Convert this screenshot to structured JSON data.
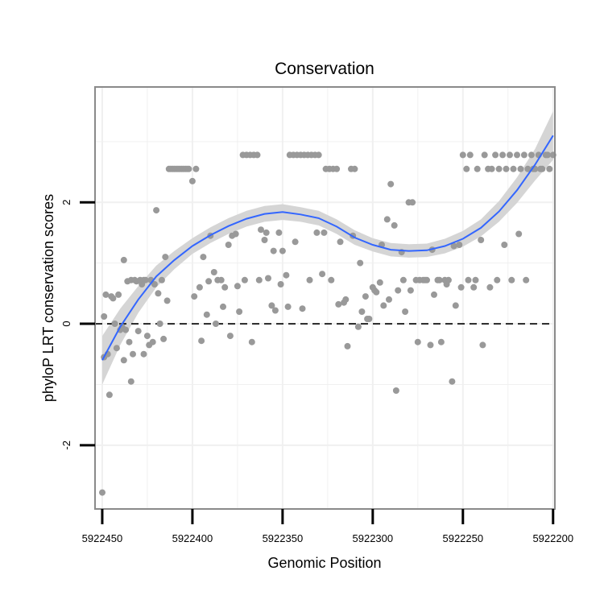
{
  "colors": {
    "point": "#999999",
    "smooth_line": "#3366ff",
    "ribbon": "#d5d5d5",
    "grid": "#f0f0f0",
    "panel_border": "#8a8a8a",
    "reference_line": "#000000"
  },
  "chart_data": {
    "type": "scatter",
    "title": "Conservation",
    "xlabel": "Genomic Position",
    "ylabel": "phyloP LRT conservation scores",
    "x_reversed": true,
    "xlim": [
      5922454,
      5922199
    ],
    "ylim": [
      -3.05,
      3.9
    ],
    "x_ticks": [
      5922450,
      5922400,
      5922350,
      5922300,
      5922250,
      5922200
    ],
    "x_tick_labels": [
      "5922450",
      "5922400",
      "5922350",
      "5922300",
      "5922250",
      "5922200"
    ],
    "y_ticks": [
      -2,
      0,
      2
    ],
    "y_tick_labels": [
      "-2",
      "0",
      "2"
    ],
    "hline": 0,
    "series": [
      {
        "name": "phyloP LRT score",
        "kind": "points",
        "x": [
          5922450,
          5922449,
          5922449,
          5922448,
          5922447,
          5922446,
          5922445,
          5922444,
          5922443,
          5922442,
          5922441,
          5922440,
          5922439,
          5922438,
          5922438,
          5922437,
          5922436,
          5922435,
          5922434,
          5922434,
          5922433,
          5922432,
          5922431,
          5922430,
          5922429,
          5922428,
          5922427,
          5922427,
          5922426,
          5922425,
          5922424,
          5922423,
          5922422,
          5922421,
          5922420,
          5922419,
          5922418,
          5922417,
          5922416,
          5922415,
          5922414,
          5922413,
          5922412,
          5922411,
          5922410,
          5922409,
          5922408,
          5922407,
          5922406,
          5922405,
          5922404,
          5922403,
          5922402,
          5922400,
          5922398,
          5922396,
          5922394,
          5922392,
          5922390,
          5922388,
          5922386,
          5922384,
          5922382,
          5922380,
          5922378,
          5922376,
          5922374,
          5922372,
          5922370,
          5922368,
          5922366,
          5922364,
          5922362,
          5922360,
          5922358,
          5922356,
          5922354,
          5922352,
          5922350,
          5922348,
          5922346,
          5922344,
          5922342,
          5922340,
          5922338,
          5922336,
          5922334,
          5922332,
          5922330,
          5922328,
          5922326,
          5922324,
          5922322,
          5922320,
          5922318,
          5922316,
          5922314,
          5922312,
          5922310,
          5922308,
          5922306,
          5922304,
          5922302,
          5922300,
          5922298,
          5922296,
          5922294,
          5922292,
          5922290,
          5922288,
          5922286,
          5922284,
          5922282,
          5922280,
          5922278,
          5922276,
          5922274,
          5922272,
          5922270,
          5922268,
          5922266,
          5922264,
          5922262,
          5922260,
          5922258,
          5922256,
          5922254,
          5922252,
          5922250,
          5922248,
          5922246,
          5922244,
          5922242,
          5922240,
          5922238,
          5922236,
          5922234,
          5922232,
          5922230,
          5922228,
          5922226,
          5922224,
          5922222,
          5922220,
          5922218,
          5922216,
          5922214,
          5922212,
          5922210,
          5922208,
          5922206,
          5922204,
          5922202,
          5922200,
          5922399,
          5922395,
          5922391,
          5922387,
          5922383,
          5922379,
          5922375,
          5922371,
          5922367,
          5922363,
          5922359,
          5922355,
          5922351,
          5922347,
          5922343,
          5922339,
          5922335,
          5922331,
          5922327,
          5922323,
          5922319,
          5922315,
          5922311,
          5922307,
          5922303,
          5922299,
          5922295,
          5922291,
          5922287,
          5922283,
          5922279,
          5922275,
          5922271,
          5922267,
          5922263,
          5922259,
          5922255,
          5922251,
          5922247,
          5922243,
          5922239,
          5922235,
          5922231,
          5922227,
          5922223,
          5922219,
          5922215,
          5922211,
          5922207,
          5922203
        ],
        "y": [
          -2.78,
          0.12,
          -0.55,
          0.48,
          -0.5,
          -1.17,
          0.45,
          0.42,
          0.0,
          -0.4,
          0.48,
          -0.1,
          -0.05,
          -0.6,
          1.05,
          -0.1,
          0.7,
          -0.3,
          0.72,
          -0.95,
          -0.5,
          0.72,
          0.7,
          -0.12,
          0.72,
          0.65,
          0.72,
          -0.5,
          0.72,
          -0.2,
          -0.35,
          0.72,
          -0.3,
          0.65,
          1.87,
          0.5,
          0.0,
          0.72,
          -0.25,
          1.1,
          0.38,
          2.55,
          2.55,
          2.55,
          2.55,
          2.55,
          2.55,
          2.55,
          2.55,
          2.55,
          2.55,
          2.55,
          2.55,
          2.35,
          2.55,
          0.6,
          1.1,
          0.15,
          1.45,
          0.85,
          0.72,
          0.72,
          0.6,
          1.3,
          1.45,
          1.48,
          0.2,
          2.78,
          2.78,
          2.78,
          2.78,
          2.78,
          1.55,
          1.38,
          0.75,
          0.3,
          0.22,
          1.5,
          1.2,
          0.8,
          2.78,
          2.78,
          2.78,
          2.78,
          2.78,
          2.78,
          2.78,
          2.78,
          2.78,
          0.82,
          2.55,
          2.55,
          2.55,
          2.55,
          1.35,
          0.35,
          -0.37,
          2.55,
          2.55,
          -0.05,
          0.2,
          0.45,
          0.08,
          0.6,
          0.52,
          0.68,
          0.3,
          1.72,
          2.3,
          1.62,
          0.55,
          1.18,
          0.2,
          2.0,
          2.0,
          0.72,
          0.72,
          0.72,
          0.72,
          -0.35,
          0.48,
          0.72,
          -0.3,
          0.72,
          0.72,
          -0.95,
          0.3,
          1.3,
          2.78,
          2.55,
          2.78,
          0.6,
          2.55,
          1.38,
          2.78,
          2.55,
          2.55,
          2.78,
          2.55,
          2.78,
          2.55,
          2.78,
          2.55,
          2.78,
          2.55,
          2.78,
          2.55,
          2.78,
          2.55,
          2.78,
          2.55,
          2.78,
          2.55,
          2.78,
          0.45,
          -0.28,
          0.7,
          0.0,
          0.28,
          -0.2,
          0.62,
          0.72,
          -0.3,
          0.72,
          1.5,
          1.2,
          0.65,
          0.28,
          1.35,
          0.25,
          0.72,
          1.5,
          1.5,
          0.72,
          0.32,
          0.4,
          1.45,
          1.0,
          0.08,
          0.55,
          1.3,
          0.4,
          -1.1,
          0.72,
          0.55,
          -0.3,
          0.72,
          1.22,
          0.72,
          0.65,
          1.28,
          0.6,
          0.72,
          0.72,
          -0.35,
          0.6,
          0.72,
          1.3,
          0.72,
          1.48,
          0.72,
          2.55,
          2.55,
          2.78
        ]
      },
      {
        "name": "loess smooth",
        "kind": "line",
        "x": [
          5922450,
          5922440,
          5922430,
          5922420,
          5922410,
          5922400,
          5922390,
          5922380,
          5922370,
          5922360,
          5922350,
          5922340,
          5922330,
          5922320,
          5922310,
          5922300,
          5922290,
          5922280,
          5922270,
          5922260,
          5922250,
          5922240,
          5922230,
          5922220,
          5922210,
          5922200
        ],
        "y": [
          -0.6,
          -0.05,
          0.4,
          0.78,
          1.05,
          1.28,
          1.46,
          1.61,
          1.73,
          1.81,
          1.84,
          1.8,
          1.74,
          1.6,
          1.42,
          1.3,
          1.22,
          1.2,
          1.21,
          1.28,
          1.4,
          1.58,
          1.85,
          2.2,
          2.62,
          3.1
        ],
        "ci_lower": [
          -1.0,
          -0.35,
          0.18,
          0.6,
          0.9,
          1.15,
          1.33,
          1.48,
          1.6,
          1.68,
          1.71,
          1.68,
          1.62,
          1.48,
          1.3,
          1.19,
          1.11,
          1.09,
          1.1,
          1.16,
          1.27,
          1.44,
          1.68,
          1.99,
          2.36,
          2.7
        ],
        "ci_upper": [
          -0.2,
          0.25,
          0.62,
          0.96,
          1.2,
          1.41,
          1.59,
          1.74,
          1.86,
          1.94,
          1.97,
          1.92,
          1.86,
          1.72,
          1.54,
          1.41,
          1.33,
          1.31,
          1.32,
          1.4,
          1.53,
          1.72,
          2.02,
          2.41,
          2.88,
          3.5
        ]
      }
    ]
  }
}
